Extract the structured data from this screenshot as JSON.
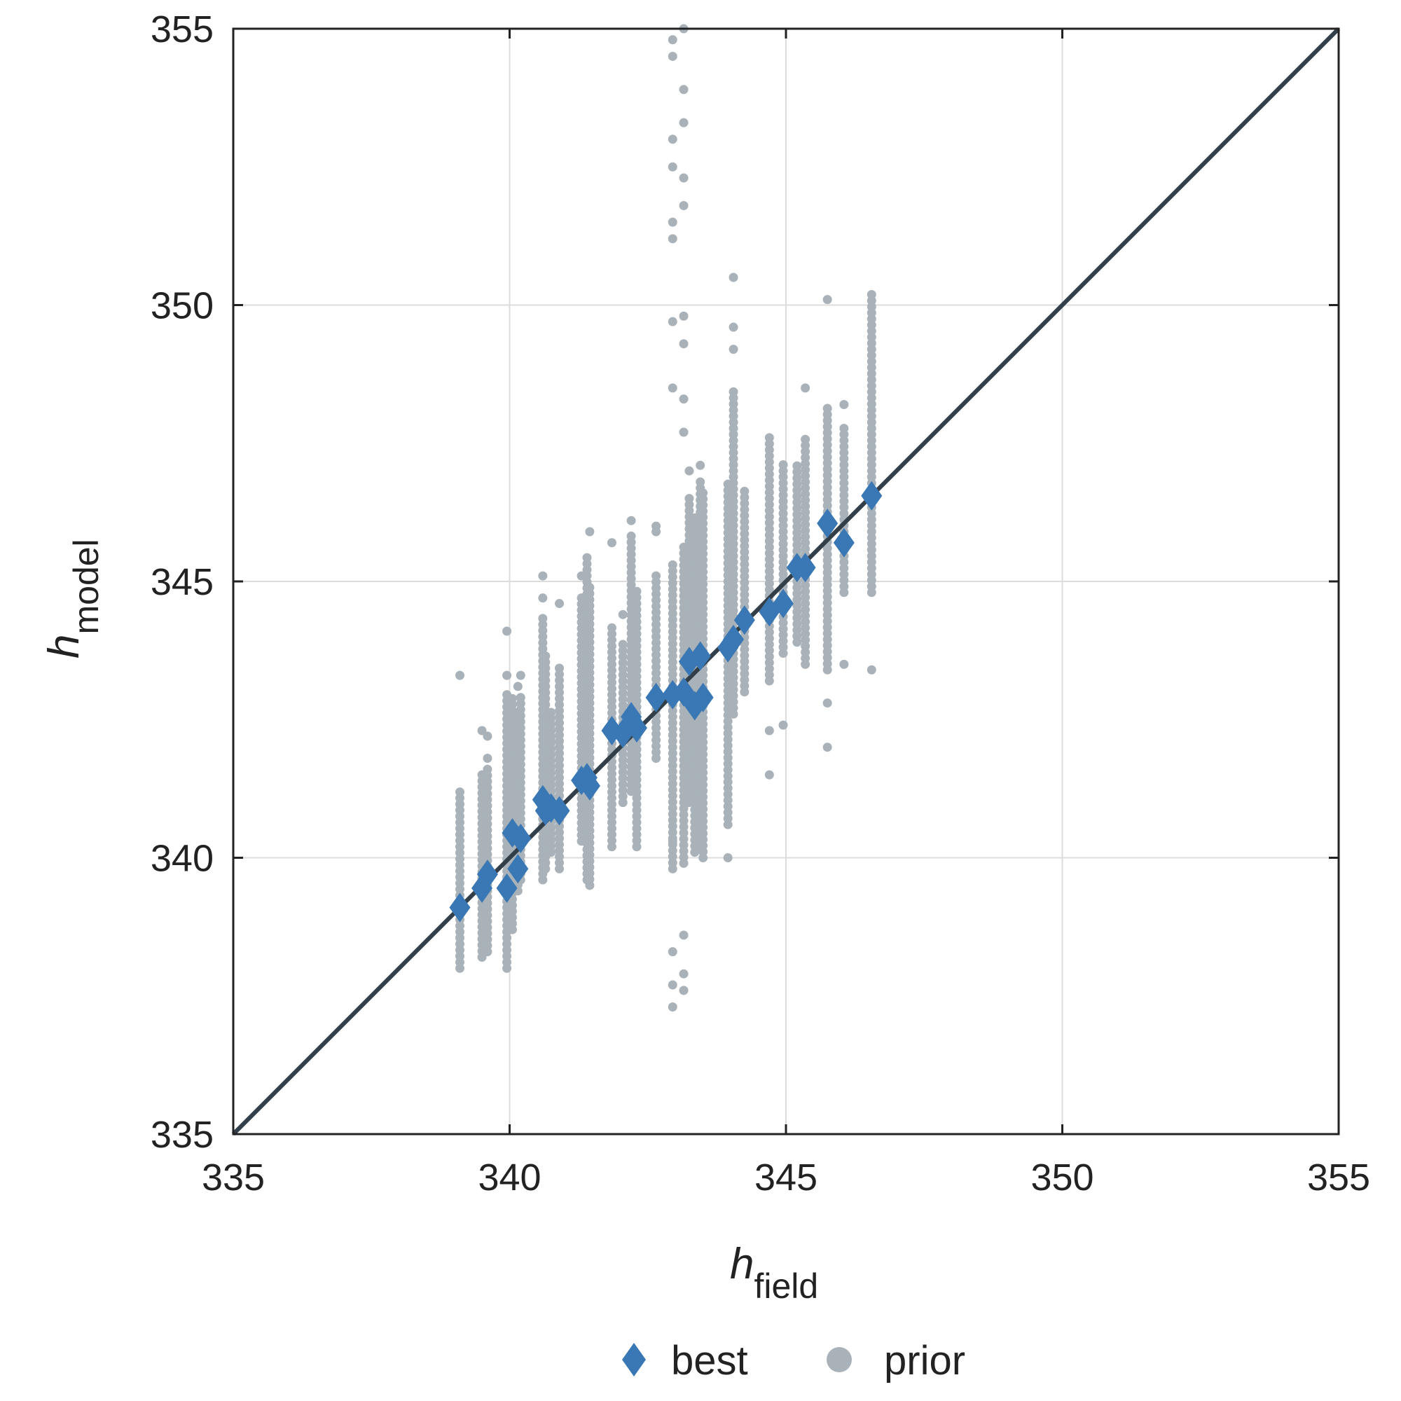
{
  "chart_data": {
    "type": "scatter",
    "title": "",
    "xlabel": {
      "main": "h",
      "sub": "field"
    },
    "ylabel": {
      "main": "h",
      "sub": "model"
    },
    "xlim": [
      335,
      355
    ],
    "ylim": [
      335,
      355
    ],
    "xticks": [
      "335",
      "340",
      "345",
      "350",
      "355"
    ],
    "yticks": [
      "335",
      "340",
      "345",
      "350",
      "355"
    ],
    "grid": true,
    "legend_position": "bottom-center",
    "reference_line": {
      "x": [
        335,
        355
      ],
      "y": [
        335,
        355
      ],
      "color": "#333f48"
    },
    "series": [
      {
        "name": "best",
        "marker": "diamond",
        "color": "#3a78b5",
        "points": [
          [
            339.1,
            339.1
          ],
          [
            339.5,
            339.45
          ],
          [
            339.6,
            339.7
          ],
          [
            339.95,
            339.45
          ],
          [
            340.05,
            340.45
          ],
          [
            340.15,
            339.8
          ],
          [
            340.2,
            340.35
          ],
          [
            340.6,
            341.05
          ],
          [
            340.65,
            340.85
          ],
          [
            340.75,
            340.9
          ],
          [
            340.9,
            340.85
          ],
          [
            341.3,
            341.4
          ],
          [
            341.4,
            341.45
          ],
          [
            341.45,
            341.3
          ],
          [
            341.85,
            342.3
          ],
          [
            342.05,
            342.25
          ],
          [
            342.2,
            342.55
          ],
          [
            342.3,
            342.35
          ],
          [
            342.65,
            342.9
          ],
          [
            342.95,
            342.95
          ],
          [
            343.15,
            343.0
          ],
          [
            343.25,
            343.55
          ],
          [
            343.35,
            342.75
          ],
          [
            343.45,
            343.65
          ],
          [
            343.5,
            342.9
          ],
          [
            343.95,
            343.8
          ],
          [
            344.05,
            343.95
          ],
          [
            344.25,
            344.3
          ],
          [
            344.7,
            344.45
          ],
          [
            344.95,
            344.6
          ],
          [
            345.2,
            345.25
          ],
          [
            345.35,
            345.25
          ],
          [
            345.75,
            346.05
          ],
          [
            346.05,
            345.7
          ],
          [
            346.55,
            346.55
          ]
        ]
      },
      {
        "name": "prior",
        "marker": "circle",
        "color": "#a9b2b9",
        "columns": [
          {
            "x": 339.1,
            "ymin": 338.0,
            "ymax": 341.2,
            "extra": [
              343.3
            ]
          },
          {
            "x": 339.5,
            "ymin": 338.2,
            "ymax": 341.6,
            "extra": [
              342.3
            ]
          },
          {
            "x": 339.6,
            "ymin": 338.3,
            "ymax": 341.7,
            "extra": [
              342.2,
              341.8
            ]
          },
          {
            "x": 339.95,
            "ymin": 338.0,
            "ymax": 343.0,
            "extra": [
              343.3,
              344.1
            ]
          },
          {
            "x": 340.05,
            "ymin": 338.7,
            "ymax": 342.9,
            "extra": []
          },
          {
            "x": 340.15,
            "ymin": 339.4,
            "ymax": 342.6,
            "extra": [
              343.1
            ]
          },
          {
            "x": 340.2,
            "ymin": 339.6,
            "ymax": 343.0,
            "extra": [
              343.3
            ]
          },
          {
            "x": 340.6,
            "ymin": 339.6,
            "ymax": 344.4,
            "extra": [
              344.7,
              345.1
            ]
          },
          {
            "x": 340.65,
            "ymin": 339.8,
            "ymax": 343.7,
            "extra": []
          },
          {
            "x": 340.75,
            "ymin": 340.1,
            "ymax": 342.7,
            "extra": []
          },
          {
            "x": 340.9,
            "ymin": 339.8,
            "ymax": 343.5,
            "extra": [
              344.6
            ]
          },
          {
            "x": 341.3,
            "ymin": 340.3,
            "ymax": 344.7,
            "extra": [
              345.1
            ]
          },
          {
            "x": 341.4,
            "ymin": 339.6,
            "ymax": 345.5,
            "extra": []
          },
          {
            "x": 341.45,
            "ymin": 339.5,
            "ymax": 344.9,
            "extra": [
              345.9
            ]
          },
          {
            "x": 341.85,
            "ymin": 340.2,
            "ymax": 344.2,
            "extra": [
              345.7
            ]
          },
          {
            "x": 342.05,
            "ymin": 341.0,
            "ymax": 343.9,
            "extra": [
              344.4
            ]
          },
          {
            "x": 342.2,
            "ymin": 341.2,
            "ymax": 345.9,
            "extra": [
              346.1
            ]
          },
          {
            "x": 342.3,
            "ymin": 340.2,
            "ymax": 344.9,
            "extra": []
          },
          {
            "x": 342.65,
            "ymin": 341.8,
            "ymax": 345.2,
            "extra": [
              346.0,
              345.9
            ]
          },
          {
            "x": 342.95,
            "ymin": 339.8,
            "ymax": 345.4,
            "extra": [
              337.3,
              337.7,
              338.3,
              340.3,
              348.5,
              349.7,
              351.2,
              351.5,
              352.5,
              353.0,
              354.5,
              354.8
            ]
          },
          {
            "x": 343.15,
            "ymin": 339.9,
            "ymax": 345.7,
            "extra": [
              337.6,
              337.9,
              338.6,
              347.7,
              348.3,
              349.3,
              349.8,
              351.8,
              352.3,
              353.3,
              353.9,
              355.0
            ]
          },
          {
            "x": 343.25,
            "ymin": 341.0,
            "ymax": 346.6,
            "extra": [
              347.0
            ]
          },
          {
            "x": 343.35,
            "ymin": 340.1,
            "ymax": 346.2,
            "extra": []
          },
          {
            "x": 343.45,
            "ymin": 340.2,
            "ymax": 346.9,
            "extra": [
              347.1
            ]
          },
          {
            "x": 343.5,
            "ymin": 340.0,
            "ymax": 346.6,
            "extra": []
          },
          {
            "x": 343.95,
            "ymin": 340.6,
            "ymax": 346.8,
            "extra": [
              340.0
            ]
          },
          {
            "x": 344.05,
            "ymin": 342.6,
            "ymax": 348.5,
            "extra": [
              349.2,
              349.6,
              350.5
            ]
          },
          {
            "x": 344.25,
            "ymin": 343.0,
            "ymax": 346.7,
            "extra": []
          },
          {
            "x": 344.7,
            "ymin": 343.2,
            "ymax": 347.7,
            "extra": [
              342.3,
              341.5
            ]
          },
          {
            "x": 344.95,
            "ymin": 343.7,
            "ymax": 347.2,
            "extra": [
              342.4
            ]
          },
          {
            "x": 345.2,
            "ymin": 343.9,
            "ymax": 347.1,
            "extra": []
          },
          {
            "x": 345.35,
            "ymin": 343.5,
            "ymax": 347.6,
            "extra": [
              348.5
            ]
          },
          {
            "x": 345.75,
            "ymin": 343.4,
            "ymax": 348.2,
            "extra": [
              342.0,
              342.8,
              350.1
            ]
          },
          {
            "x": 346.05,
            "ymin": 344.8,
            "ymax": 347.8,
            "extra": [
              343.5,
              348.2
            ]
          },
          {
            "x": 346.55,
            "ymin": 344.8,
            "ymax": 350.2,
            "extra": [
              343.4
            ]
          }
        ]
      }
    ]
  }
}
